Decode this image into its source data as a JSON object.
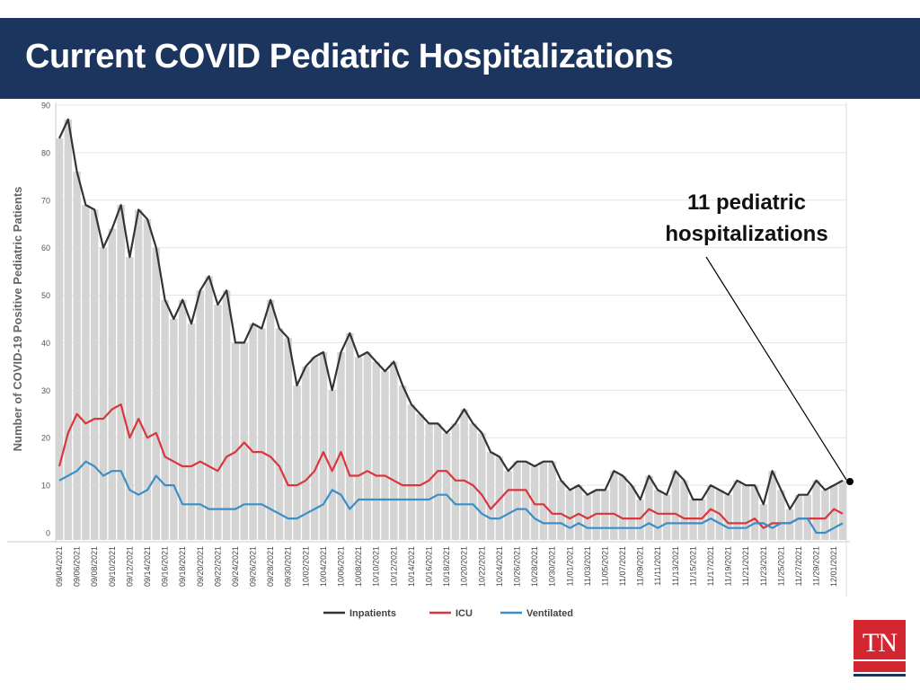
{
  "header": {
    "title": "Current COVID Pediatric Hospitalizations"
  },
  "annotation": {
    "text_line1": "11 pediatric",
    "text_line2": "hospitalizations"
  },
  "logo": {
    "text": "TN"
  },
  "colors": {
    "header_bg": "#1c355e",
    "inpatients": "#333333",
    "icu": "#d9363e",
    "ventilated": "#3a8fc7",
    "bars": "#d4d4d4",
    "logo_red": "#d22630"
  },
  "chart_data": {
    "type": "line",
    "ylabel": "Number of COVID-19 Positive Pediatric Patients",
    "ylim": [
      0,
      90
    ],
    "yticks": [
      0,
      10,
      20,
      30,
      40,
      50,
      60,
      70,
      80,
      90
    ],
    "grid": true,
    "legend_position": "bottom",
    "bars_series": "Inpatients",
    "x_tick_labels": [
      "09/04/2021",
      "09/06/2021",
      "09/08/2021",
      "09/10/2021",
      "09/12/2021",
      "09/14/2021",
      "09/16/2021",
      "09/18/2021",
      "09/20/2021",
      "09/22/2021",
      "09/24/2021",
      "09/26/2021",
      "09/28/2021",
      "09/30/2021",
      "10/02/2021",
      "10/04/2021",
      "10/06/2021",
      "10/08/2021",
      "10/10/2021",
      "10/12/2021",
      "10/14/2021",
      "10/16/2021",
      "10/18/2021",
      "10/20/2021",
      "10/22/2021",
      "10/24/2021",
      "10/26/2021",
      "10/28/2021",
      "10/30/2021",
      "11/01/2021",
      "11/03/2021",
      "11/05/2021",
      "11/07/2021",
      "11/09/2021",
      "11/11/2021",
      "11/13/2021",
      "11/15/2021",
      "11/17/2021",
      "11/19/2021",
      "11/21/2021",
      "11/23/2021",
      "11/25/2021",
      "11/27/2021",
      "11/29/2021",
      "12/01/2021"
    ],
    "series": [
      {
        "name": "Inpatients",
        "values": [
          83,
          87,
          76,
          69,
          68,
          60,
          64,
          69,
          58,
          68,
          66,
          60,
          49,
          45,
          49,
          44,
          51,
          54,
          48,
          51,
          40,
          40,
          44,
          43,
          49,
          43,
          41,
          31,
          35,
          37,
          38,
          30,
          38,
          42,
          37,
          38,
          36,
          34,
          36,
          31,
          27,
          25,
          23,
          23,
          21,
          23,
          26,
          23,
          21,
          17,
          16,
          13,
          15,
          15,
          14,
          15,
          15,
          11,
          9,
          10,
          8,
          9,
          9,
          13,
          12,
          10,
          7,
          12,
          9,
          8,
          13,
          11,
          7,
          7,
          10,
          9,
          8,
          11,
          10,
          10,
          6,
          13,
          9,
          5,
          8,
          8,
          11,
          9,
          10,
          11
        ]
      },
      {
        "name": "ICU",
        "values": [
          14,
          21,
          25,
          23,
          24,
          24,
          26,
          27,
          20,
          24,
          20,
          21,
          16,
          15,
          14,
          14,
          15,
          14,
          13,
          16,
          17,
          19,
          17,
          17,
          16,
          14,
          10,
          10,
          11,
          13,
          17,
          13,
          17,
          12,
          12,
          13,
          12,
          12,
          11,
          10,
          10,
          10,
          11,
          13,
          13,
          11,
          11,
          10,
          8,
          5,
          7,
          9,
          9,
          9,
          6,
          6,
          4,
          4,
          3,
          4,
          3,
          4,
          4,
          4,
          3,
          3,
          3,
          5,
          4,
          4,
          4,
          3,
          3,
          3,
          5,
          4,
          2,
          2,
          2,
          3,
          1,
          2,
          2,
          2,
          3,
          3,
          3,
          3,
          5,
          4
        ]
      },
      {
        "name": "Ventilated",
        "values": [
          11,
          12,
          13,
          15,
          14,
          12,
          13,
          13,
          9,
          8,
          9,
          12,
          10,
          10,
          6,
          6,
          6,
          5,
          5,
          5,
          5,
          6,
          6,
          6,
          5,
          4,
          3,
          3,
          4,
          5,
          6,
          9,
          8,
          5,
          7,
          7,
          7,
          7,
          7,
          7,
          7,
          7,
          7,
          8,
          8,
          6,
          6,
          6,
          4,
          3,
          3,
          4,
          5,
          5,
          3,
          2,
          2,
          2,
          1,
          2,
          1,
          1,
          1,
          1,
          1,
          1,
          1,
          2,
          1,
          2,
          2,
          2,
          2,
          2,
          3,
          2,
          1,
          1,
          1,
          2,
          2,
          1,
          2,
          2,
          3,
          3,
          0,
          0,
          1,
          2
        ]
      }
    ]
  }
}
